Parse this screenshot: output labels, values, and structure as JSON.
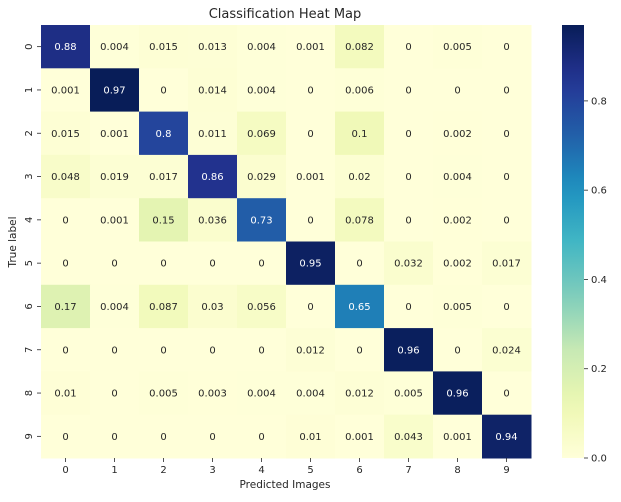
{
  "chart_data": {
    "type": "heatmap",
    "title": "Classification Heat Map",
    "xlabel": "Predicted Images",
    "ylabel": "True label",
    "x_categories": [
      "0",
      "1",
      "2",
      "3",
      "4",
      "5",
      "6",
      "7",
      "8",
      "9"
    ],
    "y_categories": [
      "0",
      "1",
      "2",
      "3",
      "4",
      "5",
      "6",
      "7",
      "8",
      "9"
    ],
    "values": [
      [
        0.88,
        0.004,
        0.015,
        0.013,
        0.004,
        0.001,
        0.082,
        0,
        0.005,
        0
      ],
      [
        0.001,
        0.97,
        0,
        0.014,
        0.004,
        0,
        0.006,
        0,
        0,
        0
      ],
      [
        0.015,
        0.001,
        0.8,
        0.011,
        0.069,
        0,
        0.1,
        0,
        0.002,
        0
      ],
      [
        0.048,
        0.019,
        0.017,
        0.86,
        0.029,
        0.001,
        0.02,
        0,
        0.004,
        0
      ],
      [
        0,
        0.001,
        0.15,
        0.036,
        0.73,
        0,
        0.078,
        0,
        0.002,
        0
      ],
      [
        0,
        0,
        0,
        0,
        0,
        0.95,
        0,
        0.032,
        0.002,
        0.017
      ],
      [
        0.17,
        0.004,
        0.087,
        0.03,
        0.056,
        0,
        0.65,
        0,
        0.005,
        0
      ],
      [
        0,
        0,
        0,
        0,
        0,
        0.012,
        0,
        0.96,
        0,
        0.024
      ],
      [
        0.01,
        0,
        0.005,
        0.003,
        0.004,
        0.004,
        0.012,
        0.005,
        0.96,
        0
      ],
      [
        0,
        0,
        0,
        0,
        0,
        0.01,
        0.001,
        0.043,
        0.001,
        0.94
      ]
    ],
    "colormap": "YlGnBu",
    "colorbar": {
      "range": [
        0,
        0.97
      ],
      "ticks": [
        0.0,
        0.2,
        0.4,
        0.6,
        0.8
      ],
      "tick_labels": [
        "0.0",
        "0.2",
        "0.4",
        "0.6",
        "0.8"
      ]
    },
    "annotations": true,
    "grid": false
  }
}
